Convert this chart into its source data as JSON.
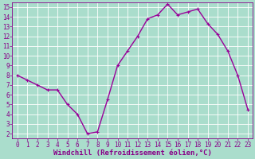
{
  "x": [
    0,
    1,
    2,
    3,
    4,
    5,
    6,
    7,
    8,
    9,
    10,
    11,
    12,
    13,
    14,
    15,
    16,
    17,
    18,
    19,
    20,
    21,
    22,
    23
  ],
  "y": [
    8.0,
    7.5,
    7.0,
    6.5,
    6.5,
    5.0,
    4.0,
    2.0,
    2.2,
    5.5,
    9.0,
    10.5,
    12.0,
    13.8,
    14.2,
    15.3,
    14.2,
    14.5,
    14.8,
    13.3,
    12.2,
    10.5,
    8.0,
    4.5
  ],
  "line_color": "#990099",
  "marker": "+",
  "bg_color": "#aaddcc",
  "grid_color": "#ffffff",
  "xlabel": "Windchill (Refroidissement éolien,°C)",
  "xlabel_color": "#880088",
  "tick_color": "#880088",
  "ylim": [
    1.5,
    15.5
  ],
  "xlim": [
    -0.5,
    23.5
  ],
  "yticks": [
    2,
    3,
    4,
    5,
    6,
    7,
    8,
    9,
    10,
    11,
    12,
    13,
    14,
    15
  ],
  "xticks": [
    0,
    1,
    2,
    3,
    4,
    5,
    6,
    7,
    8,
    9,
    10,
    11,
    12,
    13,
    14,
    15,
    16,
    17,
    18,
    19,
    20,
    21,
    22,
    23
  ],
  "tick_fontsize": 5.5,
  "xlabel_fontsize": 6.5,
  "marker_size": 3,
  "line_width": 1.0
}
